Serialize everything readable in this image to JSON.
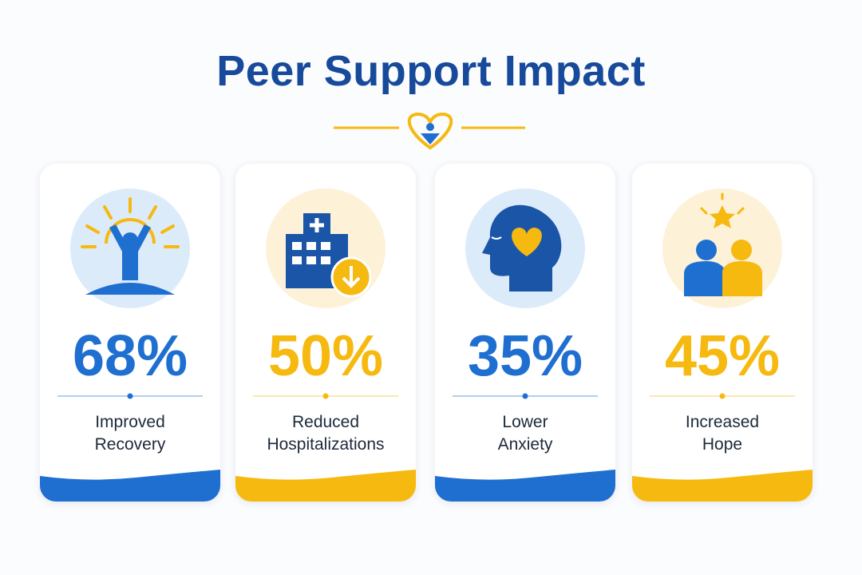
{
  "title": "Peer Support Impact",
  "cards": [
    {
      "value": "68%",
      "label": "Improved Recovery",
      "color": "#1f6fd1"
    },
    {
      "value": "50%",
      "label": "Reduced Hospitalizations",
      "color": "#f6b90f"
    },
    {
      "value": "35%",
      "label": "Lower Anxiety",
      "color": "#1f6fd1"
    },
    {
      "value": "45%",
      "label": "Increased Hope",
      "color": "#f6b90f"
    }
  ]
}
